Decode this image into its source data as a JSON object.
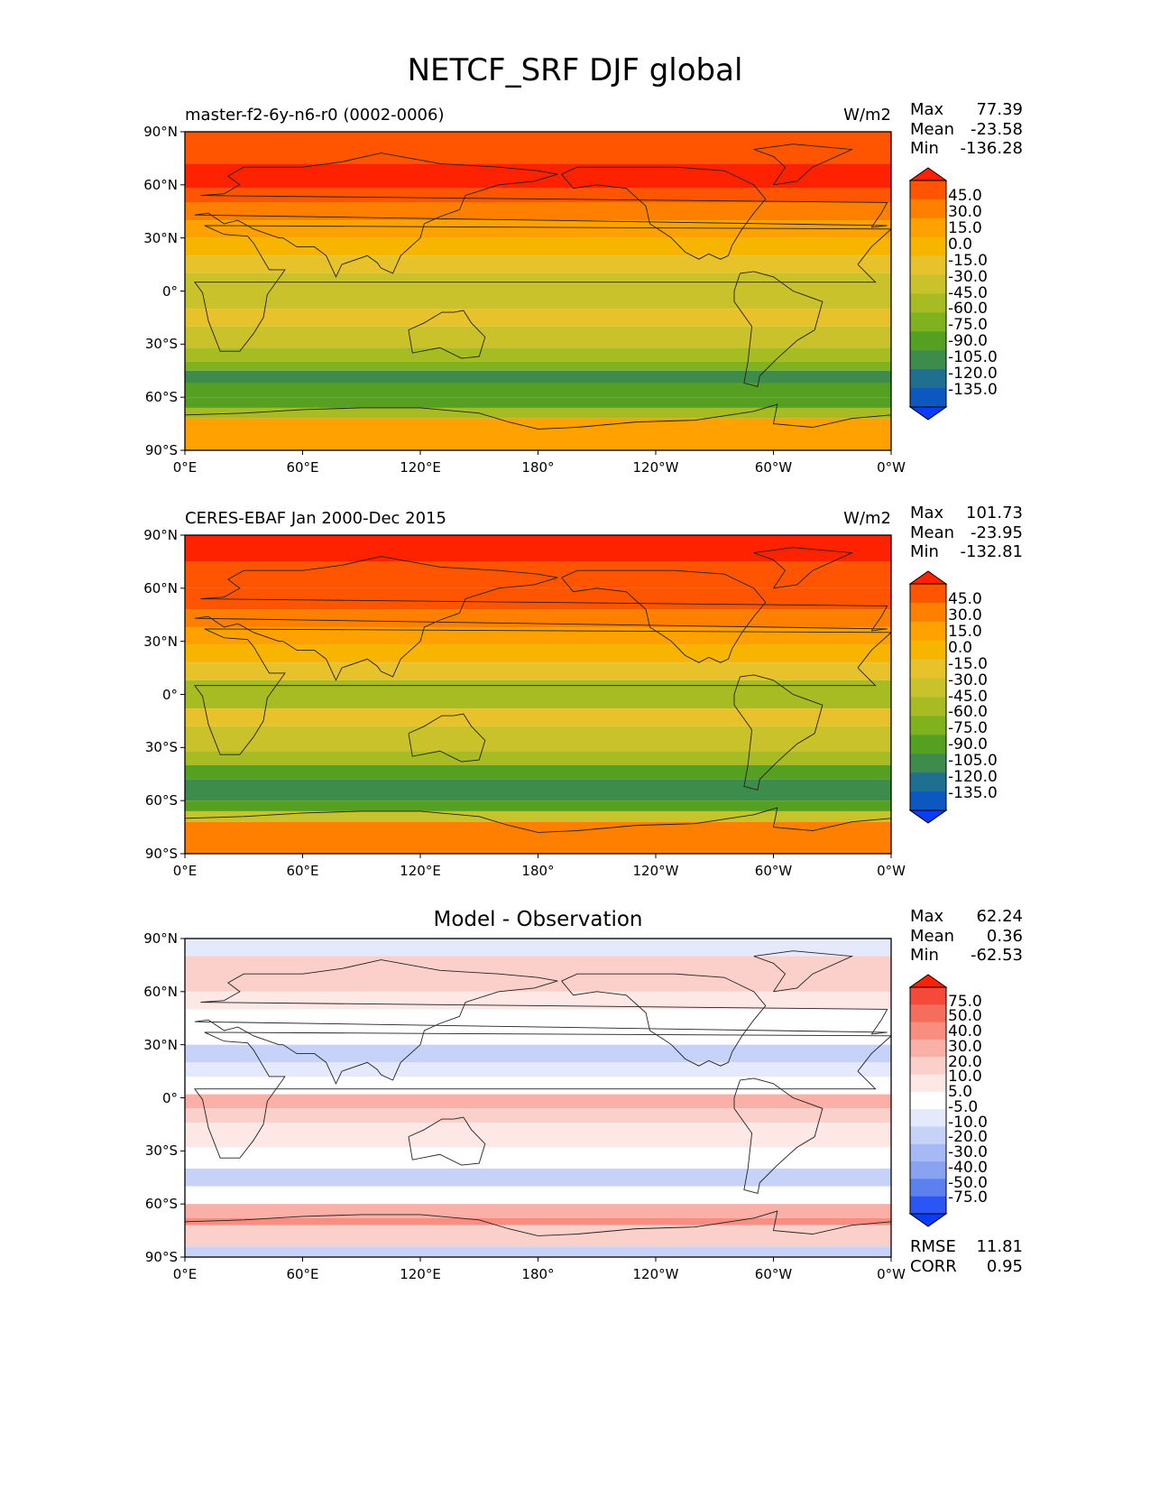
{
  "figure": {
    "title": "NETCF_SRF DJF global"
  },
  "axes": {
    "x_ticks": [
      "0°E",
      "60°E",
      "120°E",
      "180°",
      "120°W",
      "60°W",
      "0°W"
    ],
    "y_ticks": [
      "90°N",
      "60°N",
      "30°N",
      "0°",
      "30°S",
      "60°S",
      "90°S"
    ]
  },
  "panels": [
    {
      "title": "master-f2-6y-n6-r0 (0002-0006)",
      "units": "W/m2",
      "stats": [
        {
          "label": "Max",
          "value": "77.39"
        },
        {
          "label": "Mean",
          "value": "-23.58"
        },
        {
          "label": "Min",
          "value": "-136.28"
        }
      ],
      "colorbar_levels": [
        "45.0",
        "30.0",
        "15.0",
        "0.0",
        "-15.0",
        "-30.0",
        "-45.0",
        "-60.0",
        "-75.0",
        "-90.0",
        "-105.0",
        "-120.0",
        "-135.0"
      ],
      "colorbar_colors": [
        "#ff2200",
        "#ff5500",
        "#ff8000",
        "#ffa100",
        "#f7b500",
        "#e8c22a",
        "#c9c22a",
        "#a7bb22",
        "#7fb21c",
        "#55a021",
        "#3e8c4c",
        "#1f7090",
        "#0a58c0",
        "#0a3cff"
      ]
    },
    {
      "title": "CERES-EBAF Jan 2000-Dec 2015",
      "units": "W/m2",
      "stats": [
        {
          "label": "Max",
          "value": "101.73"
        },
        {
          "label": "Mean",
          "value": "-23.95"
        },
        {
          "label": "Min",
          "value": "-132.81"
        }
      ],
      "colorbar_levels": [
        "45.0",
        "30.0",
        "15.0",
        "0.0",
        "-15.0",
        "-30.0",
        "-45.0",
        "-60.0",
        "-75.0",
        "-90.0",
        "-105.0",
        "-120.0",
        "-135.0"
      ],
      "colorbar_colors": [
        "#ff2200",
        "#ff5500",
        "#ff8000",
        "#ffa100",
        "#f7b500",
        "#e8c22a",
        "#c9c22a",
        "#a7bb22",
        "#7fb21c",
        "#55a021",
        "#3e8c4c",
        "#1f7090",
        "#0a58c0",
        "#0a3cff"
      ]
    },
    {
      "title": "Model - Observation",
      "units": "",
      "stats": [
        {
          "label": "Max",
          "value": "62.24"
        },
        {
          "label": "Mean",
          "value": "0.36"
        },
        {
          "label": "Min",
          "value": "-62.53"
        }
      ],
      "extra_stats": [
        {
          "label": "RMSE",
          "value": "11.81"
        },
        {
          "label": "CORR",
          "value": "0.95"
        }
      ],
      "colorbar_levels": [
        "75.0",
        "50.0",
        "40.0",
        "30.0",
        "20.0",
        "10.0",
        "5.0",
        "-5.0",
        "-10.0",
        "-20.0",
        "-30.0",
        "-40.0",
        "-50.0",
        "-75.0"
      ],
      "colorbar_colors": [
        "#ff2200",
        "#f54a3a",
        "#f56d5c",
        "#f88d80",
        "#fab0a6",
        "#fcd0ca",
        "#fde8e5",
        "#ffffff",
        "#e4e9fb",
        "#c6d2f8",
        "#a6b9f5",
        "#8aa2f2",
        "#5d80ef",
        "#2b55f4",
        "#0a3cff"
      ]
    }
  ]
}
